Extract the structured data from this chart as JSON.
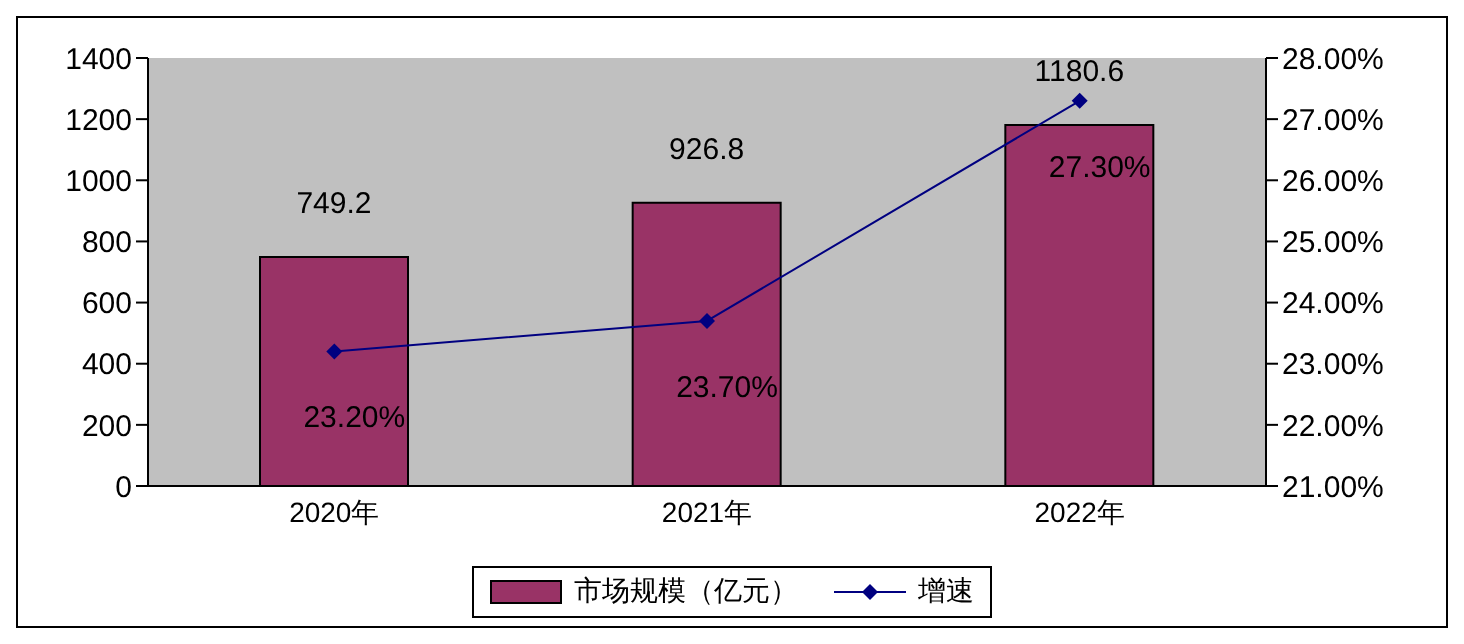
{
  "chart_data": {
    "type": "bar",
    "categories": [
      "2020年",
      "2021年",
      "2022年"
    ],
    "series": [
      {
        "name": "市场规模（亿元）",
        "color": "#993366",
        "values": [
          749.2,
          926.8,
          1180.6
        ],
        "value_labels": [
          "749.2",
          "926.8",
          "1180.6"
        ]
      },
      {
        "name": "增速",
        "type": "line",
        "axis": "y2",
        "color": "#000080",
        "marker": "diamond",
        "values": [
          23.2,
          23.7,
          27.3
        ],
        "value_labels": [
          "23.20%",
          "23.70%",
          "27.30%"
        ]
      }
    ],
    "ylim": [
      0,
      1400
    ],
    "yticks": [
      0,
      200,
      400,
      600,
      800,
      1000,
      1200,
      1400
    ],
    "y2lim": [
      21,
      28
    ],
    "y2ticks": [
      {
        "value": 21,
        "label": "21.00%"
      },
      {
        "value": 22,
        "label": "22.00%"
      },
      {
        "value": 23,
        "label": "23.00%"
      },
      {
        "value": 24,
        "label": "24.00%"
      },
      {
        "value": 25,
        "label": "25.00%"
      },
      {
        "value": 26,
        "label": "26.00%"
      },
      {
        "value": 27,
        "label": "27.00%"
      },
      {
        "value": 28,
        "label": "28.00%"
      }
    ],
    "legend": "bottom"
  }
}
